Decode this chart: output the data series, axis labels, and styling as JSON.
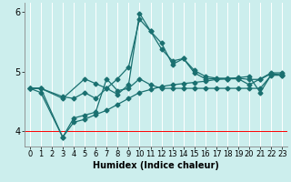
{
  "title": "",
  "xlabel": "Humidex (Indice chaleur)",
  "bg_color": "#cceeed",
  "grid_color": "#ffffff",
  "line_color": "#1a7070",
  "red_line_y": 4.0,
  "xlim": [
    -0.5,
    23.5
  ],
  "ylim": [
    3.75,
    6.15
  ],
  "yticks": [
    4,
    5,
    6
  ],
  "xticks": [
    0,
    1,
    2,
    3,
    4,
    5,
    6,
    7,
    8,
    9,
    10,
    11,
    12,
    13,
    14,
    15,
    16,
    17,
    18,
    19,
    20,
    21,
    22,
    23
  ],
  "lines": [
    {
      "x": [
        0,
        1,
        3,
        4,
        5,
        6,
        7,
        8,
        9,
        10,
        11,
        12,
        13,
        14,
        15,
        16,
        17,
        18,
        19,
        20,
        21,
        22,
        23
      ],
      "y": [
        4.72,
        4.72,
        4.58,
        4.55,
        4.65,
        4.55,
        4.72,
        4.88,
        5.08,
        5.88,
        5.68,
        5.38,
        5.18,
        5.22,
        4.98,
        4.88,
        4.88,
        4.88,
        4.88,
        4.78,
        4.88,
        4.98,
        4.98
      ]
    },
    {
      "x": [
        0,
        1,
        3,
        5,
        6,
        7,
        8,
        9,
        10,
        11,
        12,
        13,
        14,
        15,
        16,
        17,
        18,
        19,
        20,
        21,
        22,
        23
      ],
      "y": [
        4.72,
        4.72,
        4.55,
        4.88,
        4.8,
        4.72,
        4.62,
        4.78,
        5.98,
        5.68,
        5.48,
        5.12,
        5.22,
        5.02,
        4.92,
        4.89,
        4.89,
        4.89,
        4.87,
        4.87,
        4.97,
        4.94
      ]
    },
    {
      "x": [
        0,
        1,
        3,
        4,
        5,
        6,
        7,
        8,
        9,
        10,
        11,
        12,
        13,
        14,
        15,
        16,
        17,
        18,
        19,
        20,
        21,
        22,
        23
      ],
      "y": [
        4.72,
        4.72,
        3.9,
        4.22,
        4.27,
        4.32,
        4.88,
        4.68,
        4.72,
        4.88,
        4.78,
        4.72,
        4.72,
        4.72,
        4.72,
        4.72,
        4.72,
        4.72,
        4.72,
        4.72,
        4.72,
        4.94,
        4.94
      ]
    },
    {
      "x": [
        0,
        1,
        3,
        4,
        5,
        6,
        7,
        8,
        9,
        10,
        11,
        12,
        13,
        14,
        15,
        16,
        17,
        18,
        19,
        20,
        21,
        22,
        23
      ],
      "y": [
        4.72,
        4.65,
        3.9,
        4.15,
        4.2,
        4.28,
        4.35,
        4.45,
        4.55,
        4.65,
        4.7,
        4.75,
        4.78,
        4.8,
        4.82,
        4.84,
        4.87,
        4.88,
        4.9,
        4.92,
        4.65,
        4.95,
        4.95
      ]
    }
  ],
  "marker_size": 2.5,
  "line_width": 0.9,
  "xlabel_fontsize": 7,
  "tick_fontsize": 6,
  "ytick_fontsize": 7
}
